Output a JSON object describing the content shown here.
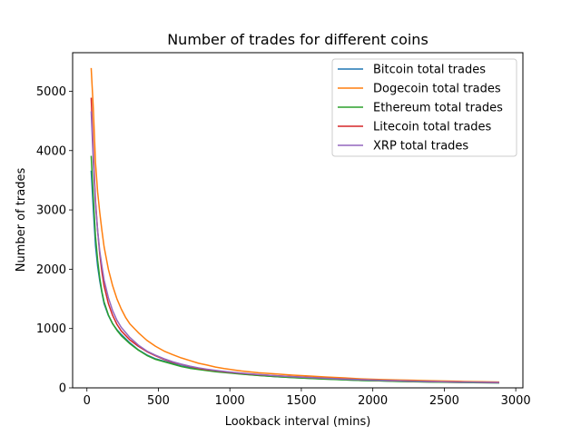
{
  "chart_data": {
    "type": "line",
    "title": "Number of trades for different coins",
    "xlabel": "Lookback interval (mins)",
    "ylabel": "Number of trades",
    "xlim": [
      -100,
      3050
    ],
    "ylim": [
      0,
      5650
    ],
    "xticks": [
      0,
      500,
      1000,
      1500,
      2000,
      2500,
      3000
    ],
    "yticks": [
      0,
      1000,
      2000,
      3000,
      4000,
      5000
    ],
    "grid": false,
    "legend_position": "top-right",
    "series": [
      {
        "name": "Bitcoin total trades",
        "color": "#1f77b4",
        "points": [
          [
            30,
            3650
          ],
          [
            45,
            3000
          ],
          [
            60,
            2400
          ],
          [
            75,
            2050
          ],
          [
            90,
            1800
          ],
          [
            105,
            1600
          ],
          [
            120,
            1420
          ],
          [
            150,
            1220
          ],
          [
            180,
            1080
          ],
          [
            210,
            980
          ],
          [
            240,
            900
          ],
          [
            300,
            760
          ],
          [
            360,
            640
          ],
          [
            420,
            555
          ],
          [
            480,
            490
          ],
          [
            540,
            450
          ],
          [
            600,
            410
          ],
          [
            660,
            370
          ],
          [
            720,
            340
          ],
          [
            780,
            315
          ],
          [
            840,
            295
          ],
          [
            900,
            280
          ],
          [
            960,
            265
          ],
          [
            1020,
            250
          ],
          [
            1080,
            235
          ],
          [
            1200,
            210
          ],
          [
            1320,
            190
          ],
          [
            1440,
            175
          ],
          [
            1560,
            160
          ],
          [
            1680,
            150
          ],
          [
            1800,
            135
          ],
          [
            1920,
            125
          ],
          [
            2040,
            118
          ],
          [
            2160,
            112
          ],
          [
            2280,
            106
          ],
          [
            2400,
            100
          ],
          [
            2520,
            96
          ],
          [
            2640,
            92
          ],
          [
            2760,
            88
          ],
          [
            2880,
            85
          ]
        ]
      },
      {
        "name": "Dogecoin total trades",
        "color": "#ff7f0e",
        "points": [
          [
            30,
            5380
          ],
          [
            45,
            4700
          ],
          [
            60,
            3800
          ],
          [
            75,
            3300
          ],
          [
            90,
            2950
          ],
          [
            105,
            2650
          ],
          [
            120,
            2380
          ],
          [
            150,
            2000
          ],
          [
            180,
            1720
          ],
          [
            210,
            1500
          ],
          [
            240,
            1330
          ],
          [
            270,
            1190
          ],
          [
            300,
            1080
          ],
          [
            360,
            930
          ],
          [
            420,
            800
          ],
          [
            480,
            700
          ],
          [
            540,
            620
          ],
          [
            600,
            560
          ],
          [
            660,
            505
          ],
          [
            720,
            460
          ],
          [
            780,
            415
          ],
          [
            840,
            385
          ],
          [
            900,
            350
          ],
          [
            960,
            325
          ],
          [
            1020,
            305
          ],
          [
            1080,
            285
          ],
          [
            1200,
            255
          ],
          [
            1320,
            235
          ],
          [
            1440,
            215
          ],
          [
            1560,
            200
          ],
          [
            1680,
            182
          ],
          [
            1800,
            168
          ],
          [
            1920,
            152
          ],
          [
            2040,
            142
          ],
          [
            2160,
            134
          ],
          [
            2280,
            128
          ],
          [
            2400,
            120
          ],
          [
            2520,
            114
          ],
          [
            2640,
            108
          ],
          [
            2760,
            103
          ],
          [
            2880,
            98
          ]
        ]
      },
      {
        "name": "Ethereum total trades",
        "color": "#2ca02c",
        "points": [
          [
            30,
            3900
          ],
          [
            45,
            3200
          ],
          [
            60,
            2550
          ],
          [
            75,
            2150
          ],
          [
            90,
            1850
          ],
          [
            105,
            1620
          ],
          [
            120,
            1450
          ],
          [
            150,
            1230
          ],
          [
            180,
            1080
          ],
          [
            210,
            970
          ],
          [
            240,
            880
          ],
          [
            300,
            745
          ],
          [
            360,
            635
          ],
          [
            420,
            545
          ],
          [
            480,
            480
          ],
          [
            540,
            440
          ],
          [
            600,
            400
          ],
          [
            660,
            360
          ],
          [
            720,
            330
          ],
          [
            780,
            310
          ],
          [
            840,
            290
          ],
          [
            900,
            272
          ],
          [
            960,
            258
          ],
          [
            1020,
            245
          ],
          [
            1080,
            232
          ],
          [
            1200,
            208
          ],
          [
            1320,
            190
          ],
          [
            1440,
            172
          ],
          [
            1560,
            158
          ],
          [
            1680,
            146
          ],
          [
            1800,
            135
          ],
          [
            1920,
            125
          ],
          [
            2040,
            118
          ],
          [
            2160,
            110
          ],
          [
            2280,
            104
          ],
          [
            2400,
            98
          ],
          [
            2520,
            94
          ],
          [
            2640,
            90
          ],
          [
            2760,
            86
          ],
          [
            2880,
            84
          ]
        ]
      },
      {
        "name": "Litecoin total trades",
        "color": "#d62728",
        "points": [
          [
            30,
            4880
          ],
          [
            45,
            3950
          ],
          [
            60,
            3150
          ],
          [
            75,
            2650
          ],
          [
            90,
            2250
          ],
          [
            105,
            1950
          ],
          [
            120,
            1720
          ],
          [
            150,
            1420
          ],
          [
            180,
            1220
          ],
          [
            210,
            1070
          ],
          [
            240,
            960
          ],
          [
            300,
            810
          ],
          [
            360,
            700
          ],
          [
            420,
            610
          ],
          [
            480,
            540
          ],
          [
            540,
            480
          ],
          [
            600,
            430
          ],
          [
            660,
            395
          ],
          [
            720,
            360
          ],
          [
            780,
            330
          ],
          [
            840,
            308
          ],
          [
            900,
            290
          ],
          [
            960,
            272
          ],
          [
            1020,
            258
          ],
          [
            1080,
            244
          ],
          [
            1200,
            222
          ],
          [
            1320,
            205
          ],
          [
            1440,
            190
          ],
          [
            1560,
            176
          ],
          [
            1680,
            163
          ],
          [
            1800,
            150
          ],
          [
            1920,
            138
          ],
          [
            2040,
            128
          ],
          [
            2160,
            120
          ],
          [
            2280,
            113
          ],
          [
            2400,
            107
          ],
          [
            2520,
            102
          ],
          [
            2640,
            97
          ],
          [
            2760,
            93
          ],
          [
            2880,
            90
          ]
        ]
      },
      {
        "name": "XRP total trades",
        "color": "#9467bd",
        "points": [
          [
            30,
            4650
          ],
          [
            45,
            3800
          ],
          [
            60,
            3100
          ],
          [
            75,
            2650
          ],
          [
            90,
            2300
          ],
          [
            105,
            2050
          ],
          [
            120,
            1820
          ],
          [
            150,
            1520
          ],
          [
            180,
            1300
          ],
          [
            210,
            1140
          ],
          [
            240,
            1020
          ],
          [
            300,
            850
          ],
          [
            360,
            720
          ],
          [
            420,
            620
          ],
          [
            480,
            550
          ],
          [
            540,
            490
          ],
          [
            600,
            440
          ],
          [
            660,
            400
          ],
          [
            720,
            365
          ],
          [
            780,
            338
          ],
          [
            840,
            315
          ],
          [
            900,
            295
          ],
          [
            960,
            278
          ],
          [
            1020,
            262
          ],
          [
            1080,
            248
          ],
          [
            1200,
            225
          ],
          [
            1320,
            205
          ],
          [
            1440,
            188
          ],
          [
            1560,
            174
          ],
          [
            1680,
            160
          ],
          [
            1800,
            148
          ],
          [
            1920,
            137
          ],
          [
            2040,
            128
          ],
          [
            2160,
            120
          ],
          [
            2280,
            113
          ],
          [
            2400,
            107
          ],
          [
            2520,
            102
          ],
          [
            2640,
            97
          ],
          [
            2760,
            93
          ],
          [
            2880,
            90
          ]
        ]
      }
    ]
  }
}
